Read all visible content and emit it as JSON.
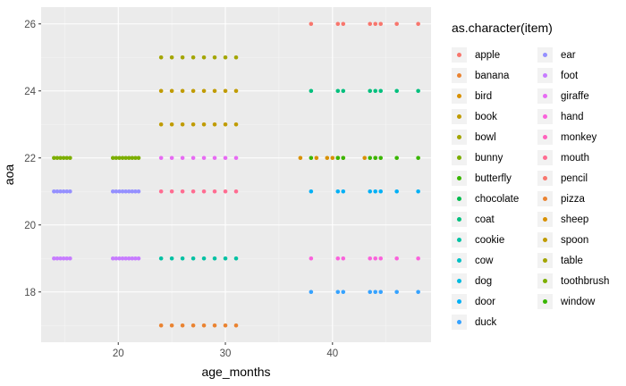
{
  "chart_data": {
    "type": "scatter",
    "title": "",
    "xlabel": "age_months",
    "ylabel": "aoa",
    "xlim": [
      12.8,
      49.2
    ],
    "ylim": [
      16.5,
      26.5
    ],
    "x_ticks": [
      20,
      30,
      40
    ],
    "y_ticks": [
      18,
      20,
      22,
      24,
      26
    ],
    "grid": true,
    "legend_title": "as.character(item)",
    "legend_position": "right",
    "series": [
      {
        "name": "apple",
        "color": "#F8766D",
        "x": [],
        "y": []
      },
      {
        "name": "banana",
        "color": "#EA8331",
        "x": [
          24,
          25,
          26,
          27,
          28,
          29,
          30,
          31
        ],
        "y": [
          17,
          17,
          17,
          17,
          17,
          17,
          17,
          17
        ]
      },
      {
        "name": "bird",
        "color": "#D89000",
        "x": [
          37,
          38.5,
          39.5,
          40,
          40.5,
          41,
          43,
          44
        ],
        "y": [
          22,
          22,
          22,
          22,
          22,
          22,
          22,
          22
        ]
      },
      {
        "name": "book",
        "color": "#C09B00",
        "x": [
          24,
          25,
          26,
          27,
          28,
          29,
          30,
          31
        ],
        "y": [
          23,
          23,
          23,
          23,
          23,
          23,
          23,
          23
        ]
      },
      {
        "name": "bowl",
        "color": "#A3A500",
        "x": [],
        "y": []
      },
      {
        "name": "bunny",
        "color": "#7CAE00",
        "x": [],
        "y": []
      },
      {
        "name": "butterfly",
        "color": "#39B600",
        "x": [],
        "y": []
      },
      {
        "name": "chocolate",
        "color": "#00BB4E",
        "x": [],
        "y": []
      },
      {
        "name": "coat",
        "color": "#00BF7D",
        "x": [
          38,
          40.5,
          41,
          43.5,
          44,
          44.5,
          46,
          48
        ],
        "y": [
          24,
          24,
          24,
          24,
          24,
          24,
          24,
          24
        ]
      },
      {
        "name": "cookie",
        "color": "#00C1A3",
        "x": [
          24,
          25,
          26,
          27,
          28,
          29,
          30,
          31
        ],
        "y": [
          19,
          19,
          19,
          19,
          19,
          19,
          19,
          19
        ]
      },
      {
        "name": "cow",
        "color": "#00BFC4",
        "x": [],
        "y": []
      },
      {
        "name": "dog",
        "color": "#00BAE0",
        "x": [],
        "y": []
      },
      {
        "name": "door",
        "color": "#00B0F6",
        "x": [
          38,
          40.5,
          41,
          43.5,
          44,
          44.5,
          46,
          48
        ],
        "y": [
          21,
          21,
          21,
          21,
          21,
          21,
          21,
          21
        ]
      },
      {
        "name": "duck",
        "color": "#35A2FF",
        "x": [
          38,
          40.5,
          41,
          43.5,
          44,
          44.5,
          46,
          48
        ],
        "y": [
          18,
          18,
          18,
          18,
          18,
          18,
          18,
          18
        ]
      },
      {
        "name": "ear",
        "color": "#9590FF",
        "x": [
          14,
          14.3,
          14.6,
          14.9,
          15.2,
          15.5,
          19.5,
          19.8,
          20.1,
          20.4,
          20.7,
          21,
          21.3,
          21.6,
          21.9
        ],
        "y": [
          21,
          21,
          21,
          21,
          21,
          21,
          21,
          21,
          21,
          21,
          21,
          21,
          21,
          21,
          21
        ]
      },
      {
        "name": "foot",
        "color": "#C77CFF",
        "x": [
          14,
          14.3,
          14.6,
          14.9,
          15.2,
          15.5,
          19.5,
          19.8,
          20.1,
          20.4,
          20.7,
          21,
          21.3,
          21.6,
          21.9
        ],
        "y": [
          19,
          19,
          19,
          19,
          19,
          19,
          19,
          19,
          19,
          19,
          19,
          19,
          19,
          19,
          19
        ]
      },
      {
        "name": "giraffe",
        "color": "#E76BF3",
        "x": [
          24,
          25,
          26,
          27,
          28,
          29,
          30,
          31
        ],
        "y": [
          22,
          22,
          22,
          22,
          22,
          22,
          22,
          22
        ]
      },
      {
        "name": "hand",
        "color": "#FA62DB",
        "x": [
          38,
          40.5,
          41,
          43.5,
          44,
          44.5,
          46,
          48
        ],
        "y": [
          19,
          19,
          19,
          19,
          19,
          19,
          19,
          19
        ]
      },
      {
        "name": "monkey",
        "color": "#FF62BC",
        "x": [],
        "y": []
      },
      {
        "name": "mouth",
        "color": "#FF6C91",
        "x": [
          24,
          25,
          26,
          27,
          28,
          29,
          30,
          31
        ],
        "y": [
          21,
          21,
          21,
          21,
          21,
          21,
          21,
          21
        ]
      },
      {
        "name": "pencil",
        "color": "#F8766D",
        "x": [
          38,
          40.5,
          41,
          43.5,
          44,
          44.5,
          46,
          48
        ],
        "y": [
          26,
          26,
          26,
          26,
          26,
          26,
          26,
          26
        ]
      },
      {
        "name": "pizza",
        "color": "#EA8331",
        "x": [],
        "y": []
      },
      {
        "name": "sheep",
        "color": "#D89000",
        "x": [],
        "y": []
      },
      {
        "name": "spoon",
        "color": "#C09B00",
        "x": [
          24,
          25,
          26,
          27,
          28,
          29,
          30,
          31
        ],
        "y": [
          24,
          24,
          24,
          24,
          24,
          24,
          24,
          24
        ]
      },
      {
        "name": "table",
        "color": "#A3A500",
        "x": [
          24,
          25,
          26,
          27,
          28,
          29,
          30,
          31
        ],
        "y": [
          25,
          25,
          25,
          25,
          25,
          25,
          25,
          25
        ]
      },
      {
        "name": "toothbrush",
        "color": "#7CAE00",
        "x": [
          14,
          14.3,
          14.6,
          14.9,
          15.2,
          15.5,
          19.5,
          19.8,
          20.1,
          20.4,
          20.7,
          21,
          21.3,
          21.6,
          21.9
        ],
        "y": [
          22,
          22,
          22,
          22,
          22,
          22,
          22,
          22,
          22,
          22,
          22,
          22,
          22,
          22,
          22
        ]
      },
      {
        "name": "window",
        "color": "#39B600",
        "x": [
          38,
          40.5,
          41,
          43.5,
          44,
          44.5,
          46,
          48
        ],
        "y": [
          22,
          22,
          22,
          22,
          22,
          22,
          22,
          22
        ]
      }
    ]
  }
}
